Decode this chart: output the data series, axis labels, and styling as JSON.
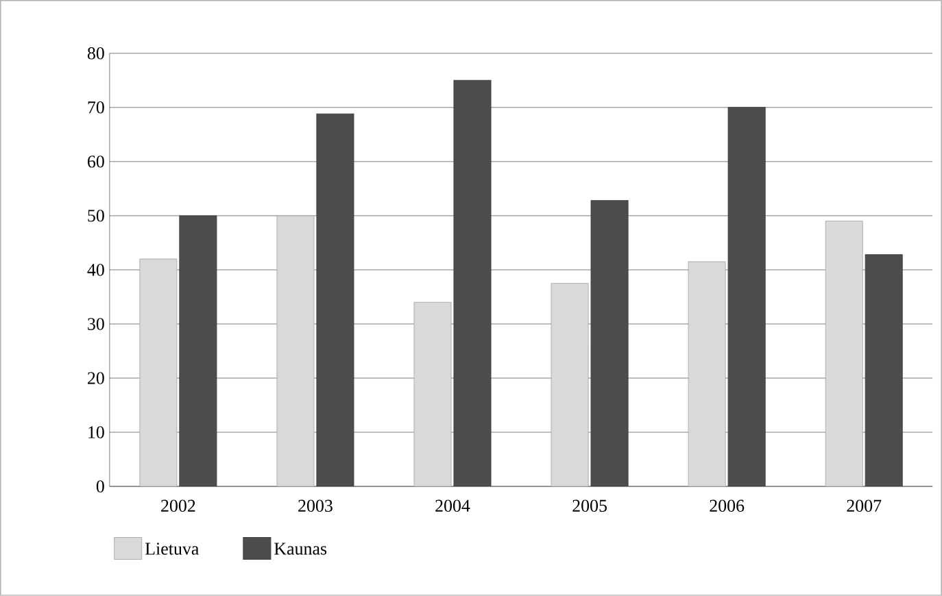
{
  "chart_data": {
    "type": "bar",
    "categories": [
      "2002",
      "2003",
      "2004",
      "2005",
      "2006",
      "2007"
    ],
    "series": [
      {
        "name": "Lietuva",
        "color": "#d9d9d9",
        "values": [
          42,
          50,
          34,
          37.5,
          41.5,
          49
        ]
      },
      {
        "name": "Kaunas",
        "color": "#4d4d4d",
        "values": [
          50,
          68.8,
          75,
          52.8,
          70,
          42.8
        ]
      }
    ],
    "ylim": [
      0,
      80
    ],
    "yticks": [
      0,
      10,
      20,
      30,
      40,
      50,
      60,
      70,
      80
    ],
    "grid": "y",
    "legend": "bottom"
  }
}
